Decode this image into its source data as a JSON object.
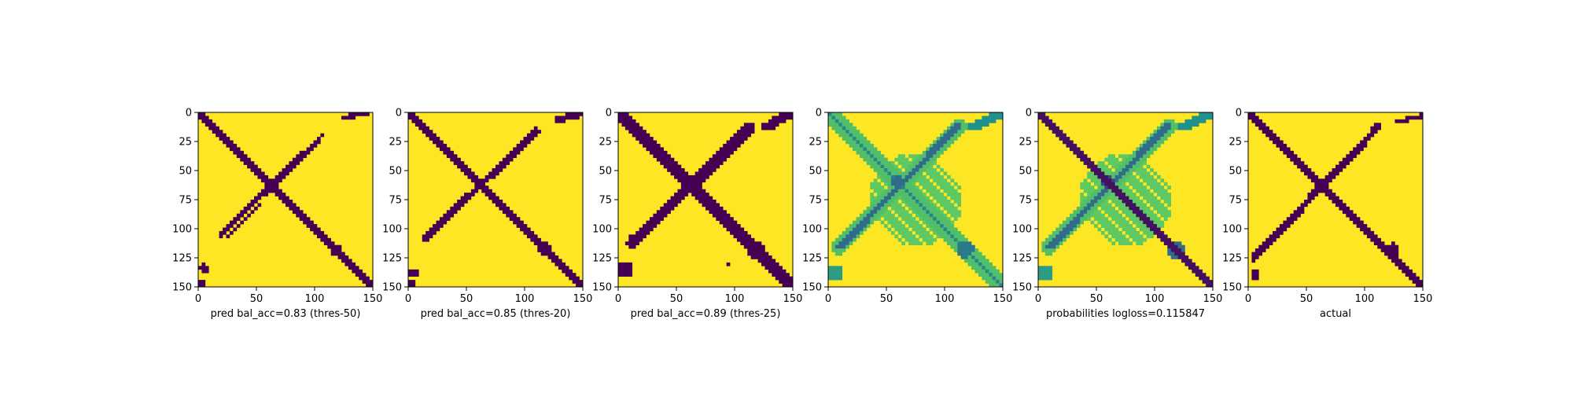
{
  "colors": {
    "low": "#440154",
    "mid_dark": "#31688e",
    "mid": "#21918c",
    "mid_light": "#5ec962",
    "high": "#fde725"
  },
  "chart_data": [
    {
      "type": "heatmap",
      "title": "",
      "xlabel": "pred bal_acc=0.83 (thres-50)",
      "xticks": [
        "0",
        "50",
        "100",
        "150"
      ],
      "yticks": [
        "0",
        "25",
        "50",
        "75",
        "100",
        "125",
        "150"
      ],
      "xlim": [
        0,
        150
      ],
      "ylim": [
        150,
        0
      ],
      "matrix_size": 150,
      "value_range": [
        0,
        1
      ],
      "background_value": 1,
      "features": [
        {
          "kind": "diagonal",
          "from": [
            0,
            0
          ],
          "to": [
            150,
            150
          ],
          "width": 3,
          "value": 0
        },
        {
          "kind": "antidiagonal",
          "from": [
            20,
            105
          ],
          "to": [
            108,
            18
          ],
          "width": 2,
          "value": 0
        },
        {
          "kind": "antidiagonal",
          "from": [
            26,
            106
          ],
          "to": [
            104,
            24
          ],
          "width": 1,
          "value": 0
        },
        {
          "kind": "antidiagonal",
          "from": [
            125,
            4
          ],
          "to": [
            145,
            1
          ],
          "width": 2,
          "value": 0
        },
        {
          "kind": "blob",
          "center": [
            118,
            118
          ],
          "radius": 5,
          "value": 0
        },
        {
          "kind": "blob",
          "center": [
            60,
            60
          ],
          "radius": 3,
          "value": 0
        },
        {
          "kind": "blob",
          "center": [
            5,
            134
          ],
          "radius": 4,
          "value": 0
        },
        {
          "kind": "blob",
          "center": [
            3,
            146
          ],
          "radius": 3,
          "value": 0
        }
      ]
    },
    {
      "type": "heatmap",
      "title": "",
      "xlabel": "pred bal_acc=0.85 (thres-20)",
      "xticks": [
        "0",
        "50",
        "100",
        "150"
      ],
      "yticks": [
        "0",
        "25",
        "50",
        "75",
        "100",
        "125",
        "150"
      ],
      "xlim": [
        0,
        150
      ],
      "ylim": [
        150,
        0
      ],
      "matrix_size": 150,
      "value_range": [
        0,
        1
      ],
      "background_value": 1,
      "features": [
        {
          "kind": "diagonal",
          "from": [
            0,
            0
          ],
          "to": [
            150,
            150
          ],
          "width": 4,
          "value": 0
        },
        {
          "kind": "antidiagonal",
          "from": [
            15,
            108
          ],
          "to": [
            110,
            16
          ],
          "width": 3,
          "value": 0
        },
        {
          "kind": "antidiagonal",
          "from": [
            128,
            6
          ],
          "to": [
            148,
            1
          ],
          "width": 3,
          "value": 0
        },
        {
          "kind": "blob",
          "center": [
            118,
            118
          ],
          "radius": 6,
          "value": 0
        },
        {
          "kind": "blob",
          "center": [
            60,
            60
          ],
          "radius": 4,
          "value": 0
        },
        {
          "kind": "blob",
          "center": [
            5,
            138
          ],
          "radius": 4,
          "value": 0
        },
        {
          "kind": "blob",
          "center": [
            3,
            147
          ],
          "radius": 3,
          "value": 0
        }
      ]
    },
    {
      "type": "heatmap",
      "title": "",
      "xlabel": "pred bal_acc=0.89 (thres-25)",
      "xticks": [
        "0",
        "50",
        "100",
        "150"
      ],
      "yticks": [
        "0",
        "25",
        "50",
        "75",
        "100",
        "125",
        "150"
      ],
      "xlim": [
        0,
        150
      ],
      "ylim": [
        150,
        0
      ],
      "matrix_size": 150,
      "value_range": [
        0,
        1
      ],
      "background_value": 1,
      "features": [
        {
          "kind": "diagonal",
          "from": [
            0,
            0
          ],
          "to": [
            150,
            150
          ],
          "width": 5,
          "value": 0
        },
        {
          "kind": "antidiagonal",
          "from": [
            12,
            112
          ],
          "to": [
            112,
            14
          ],
          "width": 5,
          "value": 0
        },
        {
          "kind": "antidiagonal",
          "from": [
            128,
            12
          ],
          "to": [
            148,
            1
          ],
          "width": 4,
          "value": 0
        },
        {
          "kind": "blob",
          "center": [
            118,
            118
          ],
          "radius": 8,
          "value": 0
        },
        {
          "kind": "blob",
          "center": [
            60,
            60
          ],
          "radius": 6,
          "value": 0
        },
        {
          "kind": "blob",
          "center": [
            6,
            135
          ],
          "radius": 7,
          "value": 0
        },
        {
          "kind": "blob",
          "center": [
            95,
            130
          ],
          "radius": 2,
          "value": 0
        }
      ]
    },
    {
      "type": "heatmap",
      "title": "",
      "xlabel": "",
      "xticks": [
        "0",
        "50",
        "100",
        "150"
      ],
      "yticks": [
        "0",
        "25",
        "50",
        "75",
        "100",
        "125",
        "150"
      ],
      "xlim": [
        0,
        150
      ],
      "ylim": [
        150,
        0
      ],
      "matrix_size": 150,
      "value_range": [
        0,
        1
      ],
      "background_value": 1,
      "features": [
        {
          "kind": "halo",
          "center": [
            75,
            75
          ],
          "radius": 40,
          "value": 0.75
        },
        {
          "kind": "diagonal",
          "from": [
            0,
            0
          ],
          "to": [
            150,
            150
          ],
          "width": 7,
          "value": 0.7
        },
        {
          "kind": "diagonal",
          "from": [
            0,
            0
          ],
          "to": [
            150,
            150
          ],
          "width": 2,
          "value": 0.45
        },
        {
          "kind": "antidiagonal",
          "from": [
            10,
            115
          ],
          "to": [
            112,
            12
          ],
          "width": 7,
          "value": 0.7
        },
        {
          "kind": "antidiagonal",
          "from": [
            10,
            115
          ],
          "to": [
            112,
            12
          ],
          "width": 3,
          "value": 0.35
        },
        {
          "kind": "antidiagonal",
          "from": [
            125,
            12
          ],
          "to": [
            148,
            1
          ],
          "width": 4,
          "value": 0.5
        },
        {
          "kind": "blob",
          "center": [
            118,
            118
          ],
          "radius": 7,
          "value": 0.4
        },
        {
          "kind": "blob",
          "center": [
            60,
            60
          ],
          "radius": 6,
          "value": 0.35
        },
        {
          "kind": "blob",
          "center": [
            6,
            138
          ],
          "radius": 7,
          "value": 0.55
        }
      ]
    },
    {
      "type": "heatmap",
      "title": "",
      "xlabel": "probabilities logloss=0.115847",
      "xticks": [
        "0",
        "50",
        "100",
        "150"
      ],
      "yticks": [
        "0",
        "25",
        "50",
        "75",
        "100",
        "125",
        "150"
      ],
      "xlim": [
        0,
        150
      ],
      "ylim": [
        150,
        0
      ],
      "matrix_size": 150,
      "value_range": [
        0,
        1
      ],
      "background_value": 1,
      "features": [
        {
          "kind": "halo",
          "center": [
            75,
            75
          ],
          "radius": 40,
          "value": 0.75
        },
        {
          "kind": "diagonal",
          "from": [
            0,
            0
          ],
          "to": [
            150,
            150
          ],
          "width": 4,
          "value": 0.05
        },
        {
          "kind": "antidiagonal",
          "from": [
            10,
            115
          ],
          "to": [
            112,
            12
          ],
          "width": 7,
          "value": 0.7
        },
        {
          "kind": "antidiagonal",
          "from": [
            10,
            115
          ],
          "to": [
            112,
            12
          ],
          "width": 3,
          "value": 0.35
        },
        {
          "kind": "antidiagonal",
          "from": [
            125,
            12
          ],
          "to": [
            148,
            1
          ],
          "width": 4,
          "value": 0.5
        },
        {
          "kind": "blob",
          "center": [
            118,
            118
          ],
          "radius": 7,
          "value": 0.35
        },
        {
          "kind": "blob",
          "center": [
            60,
            60
          ],
          "radius": 6,
          "value": 0.2
        },
        {
          "kind": "blob",
          "center": [
            6,
            138
          ],
          "radius": 7,
          "value": 0.55
        }
      ]
    },
    {
      "type": "heatmap",
      "title": "",
      "xlabel": "actual",
      "xticks": [
        "0",
        "50",
        "100",
        "150"
      ],
      "yticks": [
        "0",
        "25",
        "50",
        "75",
        "100",
        "125",
        "150"
      ],
      "xlim": [
        0,
        150
      ],
      "ylim": [
        150,
        0
      ],
      "matrix_size": 150,
      "value_range": [
        0,
        1
      ],
      "background_value": 1,
      "features": [
        {
          "kind": "diagonal",
          "from": [
            0,
            0
          ],
          "to": [
            150,
            150
          ],
          "width": 3,
          "value": 0
        },
        {
          "kind": "antidiagonal",
          "from": [
            5,
            125
          ],
          "to": [
            112,
            12
          ],
          "width": 3,
          "value": 0
        },
        {
          "kind": "antidiagonal",
          "from": [
            128,
            8
          ],
          "to": [
            148,
            3
          ],
          "width": 2,
          "value": 0
        },
        {
          "kind": "blob",
          "center": [
            124,
            118
          ],
          "radius": 6,
          "value": 0
        },
        {
          "kind": "blob",
          "center": [
            6,
            140
          ],
          "radius": 4,
          "value": 0
        },
        {
          "kind": "blob",
          "center": [
            6,
            105
          ],
          "radius": 2,
          "value": 0
        }
      ]
    }
  ]
}
